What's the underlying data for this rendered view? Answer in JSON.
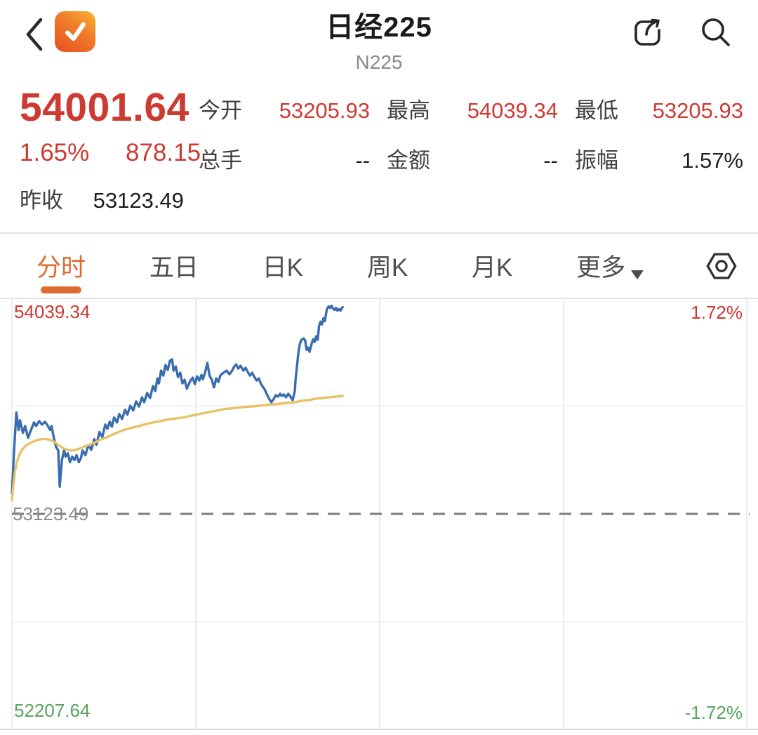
{
  "header": {
    "title": "日经225",
    "subtitle": "N225"
  },
  "quote": {
    "price": "54001.64",
    "change_percent": "1.65%",
    "change_value": "878.15",
    "prev_close_label": "昨收",
    "prev_close": "53123.49",
    "stats": [
      {
        "label": "今开",
        "value": "53205.93"
      },
      {
        "label": "最高",
        "value": "54039.34"
      },
      {
        "label": "最低",
        "value": "53205.93"
      },
      {
        "label": "总手",
        "value": "--"
      },
      {
        "label": "金额",
        "value": "--"
      },
      {
        "label": "振幅",
        "value": "1.57%"
      }
    ]
  },
  "tabs": [
    {
      "label": "分时",
      "active": true
    },
    {
      "label": "五日",
      "active": false
    },
    {
      "label": "日K",
      "active": false
    },
    {
      "label": "周K",
      "active": false
    },
    {
      "label": "月K",
      "active": false
    },
    {
      "label": "更多",
      "active": false,
      "has_dropdown": true
    }
  ],
  "icons": {
    "back": "chevron-left",
    "logo": "orange-checkmark-app",
    "share": "share-box-arrow",
    "search": "magnifier",
    "settings": "hexagon-gear",
    "more_dropdown": "triangle-down"
  },
  "colors": {
    "up_red": "#cd3a31",
    "down_green": "#5aa55d",
    "accent_orange": "#de6b30",
    "price_line_blue": "#3a6cb0",
    "average_line_yellow": "#e7c266"
  },
  "chart_data": {
    "type": "line",
    "title": "分时 intraday chart of 日经225 (N225)",
    "x_axis": {
      "min": 0,
      "max": 1,
      "note": "fraction of trading session; data ends ~0.45"
    },
    "ylim": [
      52207.64,
      54039.34
    ],
    "baseline": 53123.49,
    "grid": {
      "v_divisions": 4,
      "h_divisions": 4,
      "baseline_dashed": true,
      "legend_position": "none"
    },
    "labels": {
      "top_price": "54039.34",
      "top_percent": "1.72%",
      "baseline_price": "53123.49",
      "bottom_price": "52207.64",
      "bottom_percent": "-1.72%"
    },
    "series": [
      {
        "name": "price",
        "color": "#3a6cb0",
        "points": [
          [
            0.0,
            53209
          ],
          [
            0.003,
            53396
          ],
          [
            0.006,
            53554
          ],
          [
            0.009,
            53480
          ],
          [
            0.011,
            53521
          ],
          [
            0.015,
            53468
          ],
          [
            0.018,
            53497
          ],
          [
            0.022,
            53447
          ],
          [
            0.026,
            53480
          ],
          [
            0.03,
            53512
          ],
          [
            0.033,
            53497
          ],
          [
            0.037,
            53518
          ],
          [
            0.041,
            53503
          ],
          [
            0.045,
            53515
          ],
          [
            0.049,
            53497
          ],
          [
            0.052,
            53480
          ],
          [
            0.054,
            53497
          ],
          [
            0.057,
            53447
          ],
          [
            0.06,
            53408
          ],
          [
            0.063,
            53393
          ],
          [
            0.065,
            53239
          ],
          [
            0.068,
            53352
          ],
          [
            0.071,
            53393
          ],
          [
            0.073,
            53367
          ],
          [
            0.076,
            53381
          ],
          [
            0.079,
            53343
          ],
          [
            0.082,
            53367
          ],
          [
            0.085,
            53352
          ],
          [
            0.088,
            53373
          ],
          [
            0.091,
            53343
          ],
          [
            0.094,
            53361
          ],
          [
            0.096,
            53393
          ],
          [
            0.1,
            53373
          ],
          [
            0.104,
            53417
          ],
          [
            0.108,
            53396
          ],
          [
            0.112,
            53441
          ],
          [
            0.115,
            53417
          ],
          [
            0.119,
            53471
          ],
          [
            0.123,
            53450
          ],
          [
            0.127,
            53503
          ],
          [
            0.13,
            53485
          ],
          [
            0.133,
            53515
          ],
          [
            0.136,
            53494
          ],
          [
            0.139,
            53533
          ],
          [
            0.143,
            53512
          ],
          [
            0.146,
            53548
          ],
          [
            0.15,
            53527
          ],
          [
            0.154,
            53566
          ],
          [
            0.157,
            53545
          ],
          [
            0.161,
            53583
          ],
          [
            0.165,
            53563
          ],
          [
            0.169,
            53601
          ],
          [
            0.173,
            53580
          ],
          [
            0.177,
            53619
          ],
          [
            0.18,
            53598
          ],
          [
            0.184,
            53637
          ],
          [
            0.188,
            53616
          ],
          [
            0.192,
            53667
          ],
          [
            0.195,
            53646
          ],
          [
            0.198,
            53699
          ],
          [
            0.2,
            53678
          ],
          [
            0.203,
            53732
          ],
          [
            0.206,
            53711
          ],
          [
            0.209,
            53756
          ],
          [
            0.212,
            53735
          ],
          [
            0.215,
            53774
          ],
          [
            0.218,
            53780
          ],
          [
            0.22,
            53732
          ],
          [
            0.223,
            53750
          ],
          [
            0.226,
            53705
          ],
          [
            0.229,
            53723
          ],
          [
            0.232,
            53678
          ],
          [
            0.235,
            53693
          ],
          [
            0.238,
            53655
          ],
          [
            0.24,
            53670
          ],
          [
            0.243,
            53690
          ],
          [
            0.246,
            53702
          ],
          [
            0.249,
            53675
          ],
          [
            0.252,
            53708
          ],
          [
            0.255,
            53690
          ],
          [
            0.258,
            53714
          ],
          [
            0.26,
            53696
          ],
          [
            0.263,
            53726
          ],
          [
            0.266,
            53765
          ],
          [
            0.269,
            53711
          ],
          [
            0.272,
            53693
          ],
          [
            0.275,
            53661
          ],
          [
            0.278,
            53699
          ],
          [
            0.281,
            53684
          ],
          [
            0.284,
            53714
          ],
          [
            0.288,
            53723
          ],
          [
            0.292,
            53732
          ],
          [
            0.296,
            53717
          ],
          [
            0.299,
            53729
          ],
          [
            0.302,
            53747
          ],
          [
            0.305,
            53759
          ],
          [
            0.308,
            53741
          ],
          [
            0.311,
            53753
          ],
          [
            0.315,
            53732
          ],
          [
            0.318,
            53744
          ],
          [
            0.321,
            53726
          ],
          [
            0.324,
            53711
          ],
          [
            0.327,
            53723
          ],
          [
            0.33,
            53705
          ],
          [
            0.333,
            53690
          ],
          [
            0.336,
            53699
          ],
          [
            0.339,
            53675
          ],
          [
            0.342,
            53661
          ],
          [
            0.344,
            53652
          ],
          [
            0.347,
            53631
          ],
          [
            0.35,
            53613
          ],
          [
            0.353,
            53598
          ],
          [
            0.356,
            53610
          ],
          [
            0.359,
            53628
          ],
          [
            0.362,
            53622
          ],
          [
            0.365,
            53634
          ],
          [
            0.367,
            53625
          ],
          [
            0.37,
            53631
          ],
          [
            0.373,
            53619
          ],
          [
            0.376,
            53634
          ],
          [
            0.379,
            53622
          ],
          [
            0.382,
            53607
          ],
          [
            0.385,
            53646
          ],
          [
            0.386,
            53693
          ],
          [
            0.388,
            53753
          ],
          [
            0.39,
            53812
          ],
          [
            0.392,
            53848
          ],
          [
            0.394,
            53863
          ],
          [
            0.397,
            53869
          ],
          [
            0.399,
            53860
          ],
          [
            0.401,
            53821
          ],
          [
            0.403,
            53830
          ],
          [
            0.405,
            53812
          ],
          [
            0.406,
            53824
          ],
          [
            0.408,
            53848
          ],
          [
            0.41,
            53866
          ],
          [
            0.412,
            53854
          ],
          [
            0.414,
            53878
          ],
          [
            0.416,
            53863
          ],
          [
            0.418,
            53922
          ],
          [
            0.42,
            53940
          ],
          [
            0.422,
            53928
          ],
          [
            0.424,
            53955
          ],
          [
            0.426,
            53943
          ],
          [
            0.428,
            53984
          ],
          [
            0.429,
            53996
          ],
          [
            0.431,
            54005
          ],
          [
            0.433,
            53999
          ],
          [
            0.435,
            54008
          ],
          [
            0.437,
            53996
          ],
          [
            0.439,
            53990
          ],
          [
            0.441,
            53999
          ],
          [
            0.443,
            53987
          ],
          [
            0.445,
            53993
          ],
          [
            0.447,
            53987
          ],
          [
            0.448,
            53993
          ],
          [
            0.45,
            54002
          ]
        ]
      },
      {
        "name": "average",
        "color": "#e7c266",
        "points": [
          [
            0.0,
            53183
          ],
          [
            0.002,
            53248
          ],
          [
            0.004,
            53301
          ],
          [
            0.007,
            53346
          ],
          [
            0.01,
            53373
          ],
          [
            0.013,
            53393
          ],
          [
            0.018,
            53411
          ],
          [
            0.024,
            53423
          ],
          [
            0.03,
            53432
          ],
          [
            0.035,
            53438
          ],
          [
            0.041,
            53441
          ],
          [
            0.047,
            53441
          ],
          [
            0.052,
            53438
          ],
          [
            0.058,
            53429
          ],
          [
            0.064,
            53414
          ],
          [
            0.07,
            53402
          ],
          [
            0.075,
            53396
          ],
          [
            0.081,
            53393
          ],
          [
            0.087,
            53396
          ],
          [
            0.093,
            53402
          ],
          [
            0.098,
            53408
          ],
          [
            0.105,
            53417
          ],
          [
            0.112,
            53426
          ],
          [
            0.118,
            53435
          ],
          [
            0.125,
            53444
          ],
          [
            0.132,
            53453
          ],
          [
            0.138,
            53462
          ],
          [
            0.145,
            53471
          ],
          [
            0.152,
            53480
          ],
          [
            0.158,
            53485
          ],
          [
            0.165,
            53491
          ],
          [
            0.173,
            53497
          ],
          [
            0.18,
            53503
          ],
          [
            0.188,
            53509
          ],
          [
            0.196,
            53515
          ],
          [
            0.203,
            53518
          ],
          [
            0.211,
            53524
          ],
          [
            0.219,
            53527
          ],
          [
            0.226,
            53530
          ],
          [
            0.234,
            53533
          ],
          [
            0.241,
            53539
          ],
          [
            0.251,
            53545
          ],
          [
            0.26,
            53551
          ],
          [
            0.27,
            53557
          ],
          [
            0.28,
            53563
          ],
          [
            0.289,
            53569
          ],
          [
            0.299,
            53572
          ],
          [
            0.308,
            53575
          ],
          [
            0.318,
            53578
          ],
          [
            0.327,
            53580
          ],
          [
            0.337,
            53583
          ],
          [
            0.346,
            53586
          ],
          [
            0.356,
            53589
          ],
          [
            0.365,
            53592
          ],
          [
            0.375,
            53595
          ],
          [
            0.385,
            53598
          ],
          [
            0.394,
            53604
          ],
          [
            0.404,
            53607
          ],
          [
            0.413,
            53613
          ],
          [
            0.423,
            53616
          ],
          [
            0.432,
            53619
          ],
          [
            0.442,
            53622
          ],
          [
            0.45,
            53625
          ]
        ]
      }
    ]
  }
}
